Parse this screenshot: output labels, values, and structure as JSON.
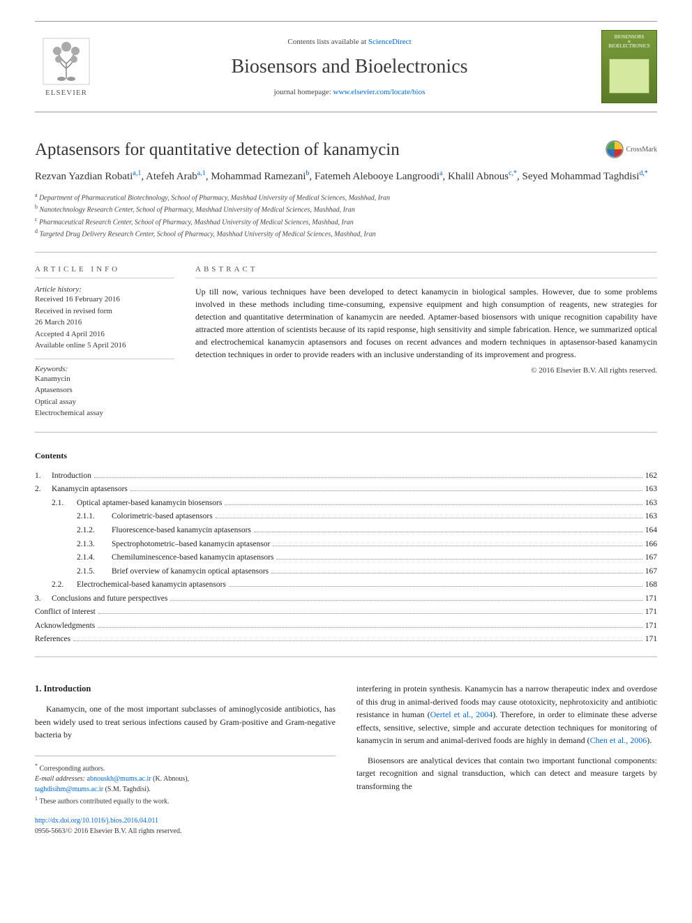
{
  "header": {
    "contents_lists_prefix": "Contents lists available at ",
    "contents_lists_link": "ScienceDirect",
    "journal_name": "Biosensors and Bioelectronics",
    "homepage_prefix": "journal homepage: ",
    "homepage_link": "www.elsevier.com/locate/bios",
    "elsevier_word": "ELSEVIER",
    "cover_text_top": "BIOSENSORS",
    "cover_text_bottom": "BIOELECTRONICS",
    "cover_colors": {
      "bg_top": "#7a9b3a",
      "bg_bottom": "#5a7a2a",
      "inner": "#d4e8a0"
    }
  },
  "article": {
    "title": "Aptasensors for quantitative detection of kanamycin",
    "crossmark_label": "CrossMark",
    "authors_html": "Rezvan Yazdian Robati <sup>a,1</sup>, Atefeh Arab <sup>a,1</sup>, Mohammad Ramezani <sup>b</sup>, Fatemeh Alebooye Langroodi <sup>a</sup>, Khalil Abnous <sup>c,*</sup>, Seyed Mohammad Taghdisi <sup>d,*</sup>",
    "authors": {
      "a1": "Rezvan Yazdian Robati",
      "a1_sup": "a,1",
      "a2": "Atefeh Arab",
      "a2_sup": "a,1",
      "a3": "Mohammad Ramezani",
      "a3_sup": "b",
      "a4": "Fatemeh Alebooye Langroodi",
      "a4_sup": "a",
      "a5": "Khalil Abnous",
      "a5_sup": "c,",
      "a6": "Seyed Mohammad Taghdisi",
      "a6_sup": "d,"
    },
    "affiliations": {
      "a": "Department of Pharmaceutical Biotechnology, School of Pharmacy, Mashhad University of Medical Sciences, Mashhad, Iran",
      "b": "Nanotechnology Research Center, School of Pharmacy, Mashhad University of Medical Sciences, Mashhad, Iran",
      "c": "Pharmaceutical Research Center, School of Pharmacy, Mashhad University of Medical Sciences, Mashhad, Iran",
      "d": "Targeted Drug Delivery Research Center, School of Pharmacy, Mashhad University of Medical Sciences, Mashhad, Iran"
    }
  },
  "info": {
    "section_head": "ARTICLE INFO",
    "history_label": "Article history:",
    "history": [
      "Received 16 February 2016",
      "Received in revised form",
      "26 March 2016",
      "Accepted 4 April 2016",
      "Available online 5 April 2016"
    ],
    "keywords_label": "Keywords:",
    "keywords": [
      "Kanamycin",
      "Aptasensors",
      "Optical assay",
      "Electrochemical assay"
    ]
  },
  "abstract": {
    "section_head": "ABSTRACT",
    "text": "Up till now, various techniques have been developed to detect kanamycin in biological samples. However, due to some problems involved in these methods including time-consuming, expensive equipment and high consumption of reagents, new strategies for detection and quantitative determination of kanamycin are needed. Aptamer-based biosensors with unique recognition capability have attracted more attention of scientists because of its rapid response, high sensitivity and simple fabrication. Hence, we summarized optical and electrochemical kanamycin aptasensors and focuses on recent advances and modern techniques in aptasensor-based kanamycin detection techniques in order to provide readers with an inclusive understanding of its improvement and progress.",
    "copyright": "© 2016 Elsevier B.V. All rights reserved."
  },
  "toc": {
    "head": "Contents",
    "rows": [
      {
        "level": 1,
        "num": "1.",
        "title": "Introduction",
        "page": "162"
      },
      {
        "level": 1,
        "num": "2.",
        "title": "Kanamycin aptasensors",
        "page": "163"
      },
      {
        "level": 2,
        "num": "2.1.",
        "title": "Optical aptamer-based kanamycin biosensors",
        "page": "163"
      },
      {
        "level": 3,
        "num": "2.1.1.",
        "title": "Colorimetric-based aptasensors",
        "page": "163"
      },
      {
        "level": 3,
        "num": "2.1.2.",
        "title": "Fluorescence-based kanamycin aptasensors",
        "page": "164"
      },
      {
        "level": 3,
        "num": "2.1.3.",
        "title": "Spectrophotometric–based kanamycin aptasensor",
        "page": "166"
      },
      {
        "level": 3,
        "num": "2.1.4.",
        "title": "Chemiluminescence-based kanamycin aptasensors",
        "page": "167"
      },
      {
        "level": 3,
        "num": "2.1.5.",
        "title": "Brief overview of kanamycin optical aptasensors",
        "page": "167"
      },
      {
        "level": 2,
        "num": "2.2.",
        "title": "Electrochemical-based kanamycin aptasensors",
        "page": "168"
      },
      {
        "level": 1,
        "num": "3.",
        "title": "Conclusions and future perspectives",
        "page": "171"
      },
      {
        "level": 0,
        "num": "",
        "title": "Conflict of interest",
        "page": "171"
      },
      {
        "level": 0,
        "num": "",
        "title": "Acknowledgments",
        "page": "171"
      },
      {
        "level": 0,
        "num": "",
        "title": "References",
        "page": "171"
      }
    ]
  },
  "body": {
    "sec_title": "1. Introduction",
    "left_para": "Kanamycin, one of the most important subclasses of aminoglycoside antibiotics, has been widely used to treat serious infections caused by Gram-positive and Gram-negative bacteria by",
    "right_p1_a": "interfering in protein synthesis. Kanamycin has a narrow therapeutic index and overdose of this drug in animal-derived foods may cause ototoxicity, nephrotoxicity and antibiotic resistance in human (",
    "right_p1_link1": "Oertel et al., 2004",
    "right_p1_b": "). Therefore, in order to eliminate these adverse effects, sensitive, selective, simple and accurate detection techniques for monitoring of kanamycin in serum and animal-derived foods are highly in demand (",
    "right_p1_link2": "Chen et al., 2006",
    "right_p1_c": ").",
    "right_p2": "Biosensors are analytical devices that contain two important functional components: target recognition and signal transduction, which can detect and measure targets by transforming the"
  },
  "footer": {
    "corr": "Corresponding authors.",
    "email_label": "E-mail addresses: ",
    "email1": "abnouskh@mums.ac.ir",
    "email1_name": " (K. Abnous),",
    "email2": "taghdisihm@mums.ac.ir",
    "email2_name": " (S.M. Taghdisi).",
    "note1": "These authors contributed equally to the work.",
    "doi": "http://dx.doi.org/10.1016/j.bios.2016.04.011",
    "issn_line": "0956-5663/© 2016 Elsevier B.V. All rights reserved."
  },
  "colors": {
    "link": "#0066cc",
    "text": "#1a1a1a",
    "rule": "#bbbbbb",
    "elsevier_orange": "#ed6b1f"
  },
  "typography": {
    "title_pt": 25,
    "journal_pt": 28,
    "body_pt": 12,
    "small_pt": 11,
    "tiny_pt": 10
  }
}
